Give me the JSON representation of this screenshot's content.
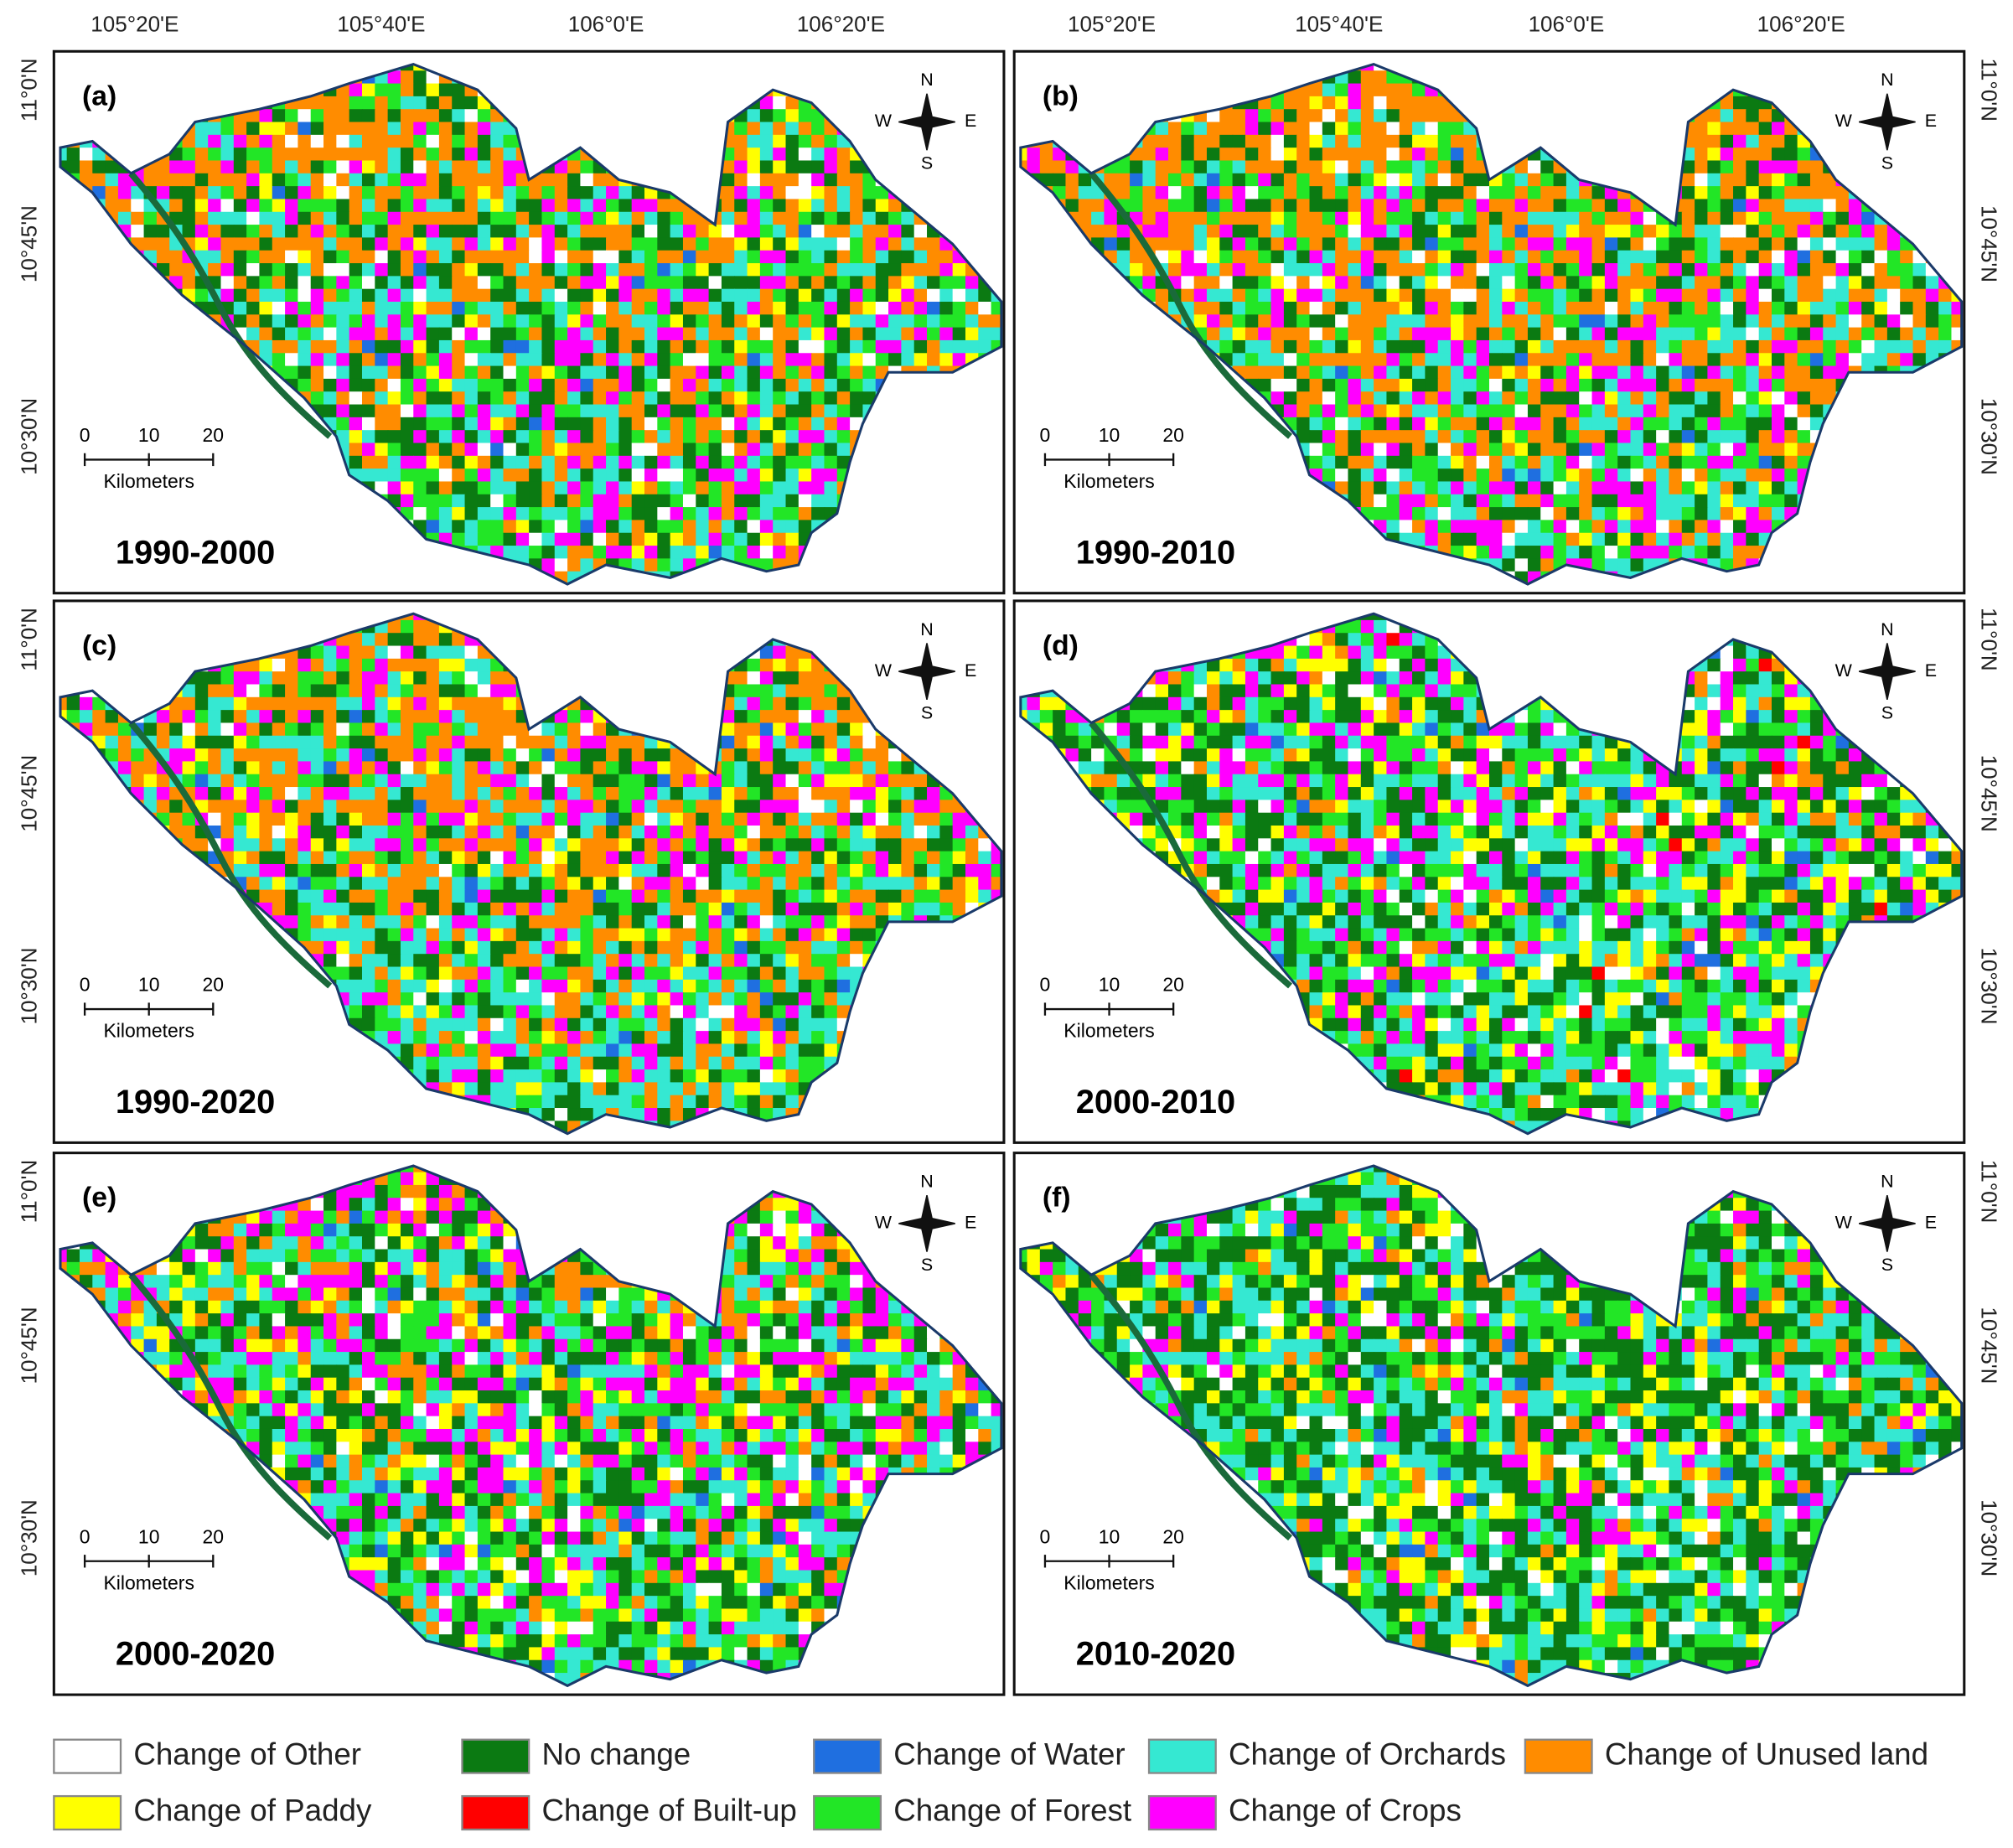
{
  "longitude_labels": [
    "105°20'E",
    "105°40'E",
    "106°0'E",
    "106°20'E"
  ],
  "latitude_labels": [
    "11°0'N",
    "10°45'N",
    "10°30'N"
  ],
  "panels": [
    {
      "label": "(a)",
      "period": "1990-2000"
    },
    {
      "label": "(b)",
      "period": "1990-2010"
    },
    {
      "label": "(c)",
      "period": "1990-2020"
    },
    {
      "label": "(d)",
      "period": "2000-2010"
    },
    {
      "label": "(e)",
      "period": "2000-2020"
    },
    {
      "label": "(f)",
      "period": "2010-2020"
    }
  ],
  "compass": {
    "n": "N",
    "s": "S",
    "e": "E",
    "w": "W"
  },
  "scale_bar": {
    "ticks": [
      0,
      10,
      20
    ],
    "unit": "Kilometers"
  },
  "legend": [
    {
      "label": "Change of Other",
      "color": "#ffffff"
    },
    {
      "label": "No change",
      "color": "#0b7a12"
    },
    {
      "label": "Change of Water",
      "color": "#1f6fe0"
    },
    {
      "label": "Change of Orchards",
      "color": "#35e8d2"
    },
    {
      "label": "Change of Unused land",
      "color": "#ff8c00"
    },
    {
      "label": "Change of Paddy",
      "color": "#ffff00"
    },
    {
      "label": "Change of Built-up",
      "color": "#ff0000"
    },
    {
      "label": "Change of Forest",
      "color": "#22e626"
    },
    {
      "label": "Change of Crops",
      "color": "#ff00ff"
    }
  ]
}
